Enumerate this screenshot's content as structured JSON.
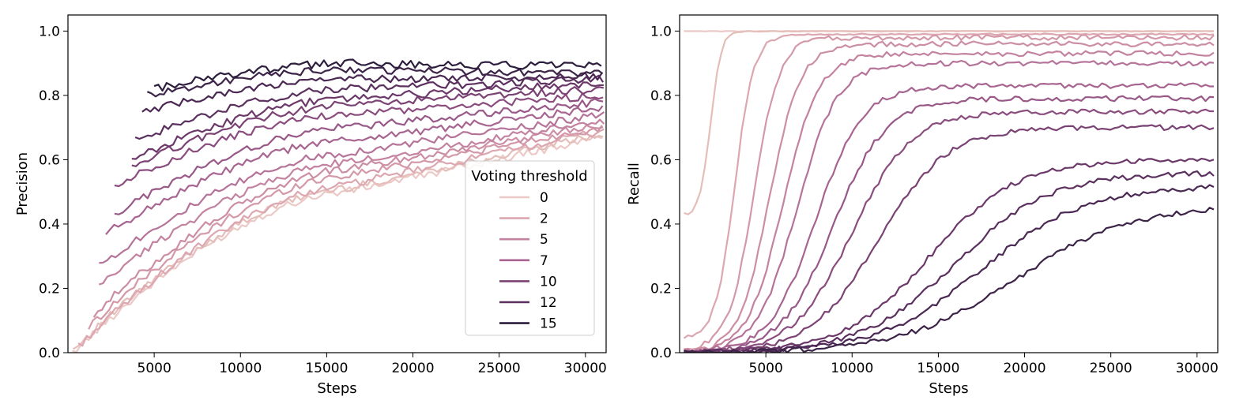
{
  "chart_data": [
    {
      "type": "line",
      "title": "",
      "xlabel": "Steps",
      "ylabel": "Precision",
      "xlim": [
        0,
        31200
      ],
      "ylim": [
        0,
        1.05
      ],
      "xticks": [
        5000,
        10000,
        15000,
        20000,
        25000,
        30000
      ],
      "yticks": [
        0.0,
        0.2,
        0.4,
        0.6,
        0.8,
        1.0
      ],
      "xtick_labels": [
        "5000",
        "10000",
        "15000",
        "20000",
        "25000",
        "30000"
      ],
      "ytick_labels": [
        "0.0",
        "0.2",
        "0.4",
        "0.6",
        "0.8",
        "1.0"
      ],
      "grid": false,
      "legend": {
        "title": "Voting threshold",
        "placement": "center-right",
        "entries": [
          {
            "label": "0",
            "color": "#ebc9c7"
          },
          {
            "label": "2",
            "color": "#dca7b1"
          },
          {
            "label": "5",
            "color": "#c3829f"
          },
          {
            "label": "7",
            "color": "#a76490"
          },
          {
            "label": "10",
            "color": "#7b4274"
          },
          {
            "label": "12",
            "color": "#5b305f"
          },
          {
            "label": "15",
            "color": "#2d1e3e"
          }
        ]
      },
      "series": [
        {
          "threshold": 0,
          "color": "#ebc9c7",
          "x_start": 250,
          "y_start": 0.0,
          "y_mid": 0.5,
          "y_end": 0.67
        },
        {
          "threshold": 1,
          "color": "#e5beba",
          "x_start": 300,
          "y_start": 0.01,
          "y_mid": 0.51,
          "y_end": 0.68
        },
        {
          "threshold": 2,
          "color": "#dca7b1",
          "x_start": 600,
          "y_start": 0.02,
          "y_mid": 0.52,
          "y_end": 0.69
        },
        {
          "threshold": 3,
          "color": "#d499a8",
          "x_start": 1200,
          "y_start": 0.08,
          "y_mid": 0.55,
          "y_end": 0.7
        },
        {
          "threshold": 4,
          "color": "#cc8ea5",
          "x_start": 1500,
          "y_start": 0.12,
          "y_mid": 0.57,
          "y_end": 0.71
        },
        {
          "threshold": 5,
          "color": "#c3829f",
          "x_start": 1800,
          "y_start": 0.21,
          "y_mid": 0.59,
          "y_end": 0.72
        },
        {
          "threshold": 6,
          "color": "#b5739a",
          "x_start": 1800,
          "y_start": 0.27,
          "y_mid": 0.62,
          "y_end": 0.74
        },
        {
          "threshold": 7,
          "color": "#a76490",
          "x_start": 2200,
          "y_start": 0.37,
          "y_mid": 0.66,
          "y_end": 0.76
        },
        {
          "threshold": 8,
          "color": "#985888",
          "x_start": 2700,
          "y_start": 0.43,
          "y_mid": 0.7,
          "y_end": 0.78
        },
        {
          "threshold": 9,
          "color": "#8a4d7e",
          "x_start": 2700,
          "y_start": 0.52,
          "y_mid": 0.74,
          "y_end": 0.8
        },
        {
          "threshold": 10,
          "color": "#7b4274",
          "x_start": 3700,
          "y_start": 0.58,
          "y_mid": 0.77,
          "y_end": 0.82
        },
        {
          "threshold": 11,
          "color": "#6c386a",
          "x_start": 3700,
          "y_start": 0.6,
          "y_mid": 0.79,
          "y_end": 0.84
        },
        {
          "threshold": 12,
          "color": "#5b305f",
          "x_start": 3900,
          "y_start": 0.66,
          "y_mid": 0.82,
          "y_end": 0.85
        },
        {
          "threshold": 13,
          "color": "#4b2853",
          "x_start": 4300,
          "y_start": 0.75,
          "y_mid": 0.85,
          "y_end": 0.86
        },
        {
          "threshold": 14,
          "color": "#3c2348",
          "x_start": 4600,
          "y_start": 0.8,
          "y_mid": 0.88,
          "y_end": 0.87
        },
        {
          "threshold": 15,
          "color": "#2d1e3e",
          "x_start": 5000,
          "y_start": 0.82,
          "y_mid": 0.9,
          "y_end": 0.89
        }
      ]
    },
    {
      "type": "line",
      "title": "",
      "xlabel": "Steps",
      "ylabel": "Recall",
      "xlim": [
        0,
        31200
      ],
      "ylim": [
        0,
        1.05
      ],
      "xticks": [
        5000,
        10000,
        15000,
        20000,
        25000,
        30000
      ],
      "yticks": [
        0.0,
        0.2,
        0.4,
        0.6,
        0.8,
        1.0
      ],
      "xtick_labels": [
        "5000",
        "10000",
        "15000",
        "20000",
        "25000",
        "30000"
      ],
      "ytick_labels": [
        "0.0",
        "0.2",
        "0.4",
        "0.6",
        "0.8",
        "1.0"
      ],
      "grid": false,
      "series": [
        {
          "threshold": 0,
          "color": "#ebc9c7",
          "x_start": 250,
          "y_start": 1.0,
          "midpoint": 0,
          "y_end": 1.0
        },
        {
          "threshold": 1,
          "color": "#e5beba",
          "x_start": 250,
          "y_start": 0.43,
          "midpoint": 1800,
          "y_end": 1.0
        },
        {
          "threshold": 2,
          "color": "#dca7b1",
          "x_start": 250,
          "y_start": 0.05,
          "midpoint": 3200,
          "y_end": 0.99
        },
        {
          "threshold": 3,
          "color": "#d499a8",
          "x_start": 250,
          "y_start": 0.01,
          "midpoint": 4300,
          "y_end": 0.98
        },
        {
          "threshold": 4,
          "color": "#cc8ea5",
          "x_start": 250,
          "y_start": 0.0,
          "midpoint": 5200,
          "y_end": 0.96
        },
        {
          "threshold": 5,
          "color": "#c3829f",
          "x_start": 250,
          "y_start": 0.0,
          "midpoint": 6000,
          "y_end": 0.93
        },
        {
          "threshold": 6,
          "color": "#b5739a",
          "x_start": 250,
          "y_start": 0.0,
          "midpoint": 6800,
          "y_end": 0.9
        },
        {
          "threshold": 7,
          "color": "#a76490",
          "x_start": 250,
          "y_start": 0.0,
          "midpoint": 7900,
          "y_end": 0.83
        },
        {
          "threshold": 8,
          "color": "#985888",
          "x_start": 250,
          "y_start": 0.0,
          "midpoint": 8900,
          "y_end": 0.79
        },
        {
          "threshold": 9,
          "color": "#8a4d7e",
          "x_start": 250,
          "y_start": 0.0,
          "midpoint": 10000,
          "y_end": 0.75
        },
        {
          "threshold": 10,
          "color": "#7b4274",
          "x_start": 250,
          "y_start": 0.0,
          "midpoint": 11500,
          "y_end": 0.7
        },
        {
          "threshold": 11,
          "color": "#6c386a",
          "x_start": 250,
          "y_start": 0.0,
          "midpoint": 14500,
          "y_end": 0.6
        },
        {
          "threshold": 12,
          "color": "#5b305f",
          "x_start": 250,
          "y_start": 0.0,
          "midpoint": 16000,
          "y_end": 0.56
        },
        {
          "threshold": 13,
          "color": "#4b2853",
          "x_start": 250,
          "y_start": 0.0,
          "midpoint": 17500,
          "y_end": 0.52
        },
        {
          "threshold": 14,
          "color": "#3c2348",
          "x_start": 250,
          "y_start": 0.0,
          "midpoint": 19500,
          "y_end": 0.46
        }
      ]
    }
  ]
}
